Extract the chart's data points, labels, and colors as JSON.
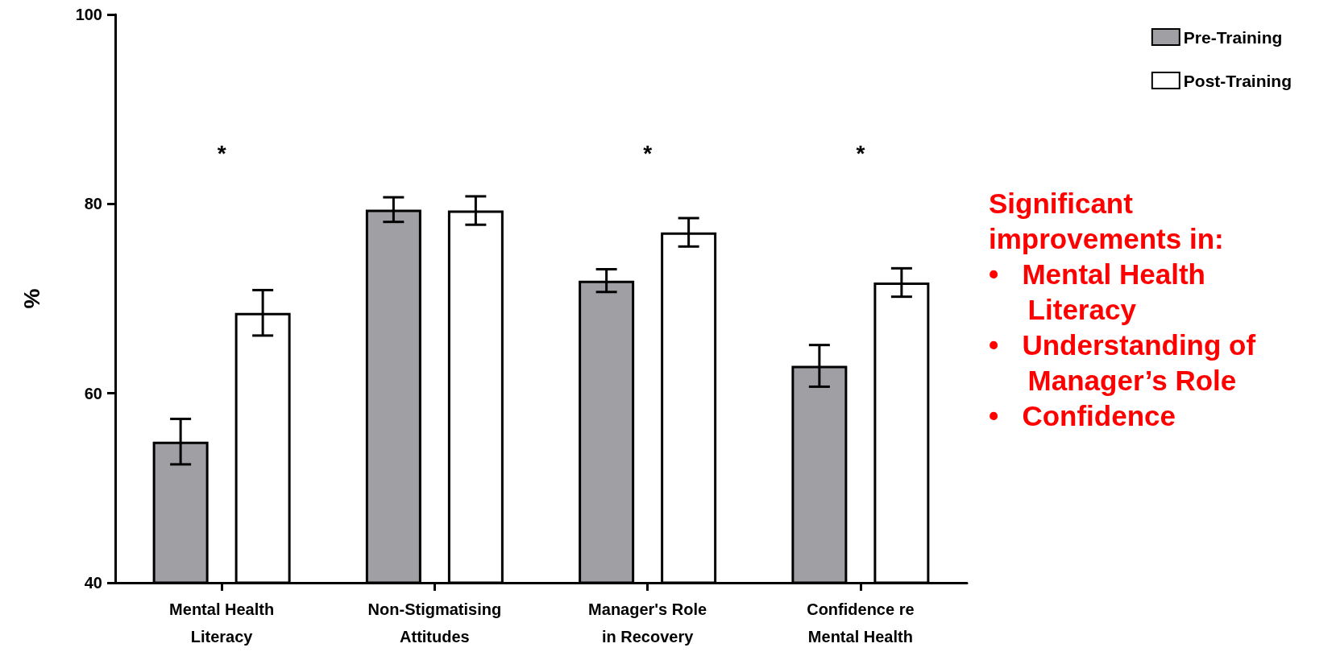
{
  "chart_data": {
    "type": "bar",
    "ylabel": "%",
    "categories": [
      "Mental Health\nLiteracy",
      "Non-Stigmatising\nAttitudes",
      "Manager's Role\nin Recovery",
      "Confidence re\nMental Health"
    ],
    "series": [
      {
        "name": "Pre-Training",
        "color": "#a0a0a4",
        "values": [
          54.9,
          79.4,
          71.9,
          62.9
        ],
        "errors": [
          2.4,
          1.3,
          1.2,
          2.2
        ]
      },
      {
        "name": "Post-Training",
        "color": "#ffffff",
        "values": [
          68.5,
          79.3,
          77.0,
          71.7
        ],
        "errors": [
          2.4,
          1.5,
          1.5,
          1.5
        ]
      }
    ],
    "ylim": [
      40,
      100
    ],
    "yticks": [
      40,
      60,
      80,
      100
    ],
    "grid": false,
    "legend": "top right",
    "annotations": [
      "*",
      "*",
      "*",
      "Significant\nimprovements in:\n•   Mental Health\n     Literacy\n•   Understanding of\n     Manager’s Role\n•   Confidence"
    ]
  }
}
